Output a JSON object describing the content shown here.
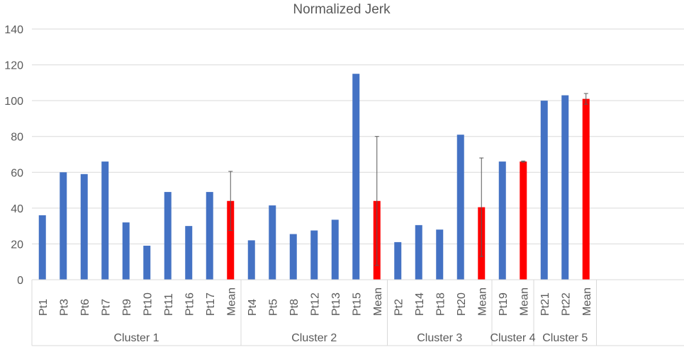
{
  "chart_data": {
    "type": "bar",
    "title": "Normalized Jerk",
    "xlabel": "",
    "ylabel": "",
    "ylim": [
      0,
      140
    ],
    "yticks": [
      0,
      20,
      40,
      60,
      80,
      100,
      120,
      140
    ],
    "grid": true,
    "legend": "none",
    "colors": {
      "patient": "#4472C4",
      "mean": "#FF0000",
      "error_bar": "#595959"
    },
    "groups": [
      {
        "name": "Cluster 1",
        "categories": [
          "Pt1",
          "Pt3",
          "Pt6",
          "Pt7",
          "Pt9",
          "Pt10",
          "Pt11",
          "Pt16",
          "Pt17",
          "Mean"
        ],
        "values": [
          36,
          60,
          59,
          66,
          32,
          19,
          49,
          30,
          49,
          44
        ],
        "mean_error": 16.5
      },
      {
        "name": "Cluster 2",
        "categories": [
          "Pt4",
          "Pt5",
          "Pt8",
          "Pt12",
          "Pt13",
          "Pt15",
          "Mean"
        ],
        "values": [
          22,
          41.5,
          25.5,
          27.5,
          33.5,
          115,
          44
        ],
        "mean_error": 36
      },
      {
        "name": "Cluster 3",
        "categories": [
          "Pt2",
          "Pt14",
          "Pt18",
          "Pt20",
          "Mean"
        ],
        "values": [
          21,
          30.5,
          28,
          81,
          40.5
        ],
        "mean_error": 27.5
      },
      {
        "name": "Cluster 4",
        "categories": [
          "Pt19",
          "Mean"
        ],
        "values": [
          66,
          66
        ],
        "mean_error": 0.3
      },
      {
        "name": "Cluster 5",
        "categories": [
          "Pt21",
          "Pt22",
          "Mean"
        ],
        "values": [
          100,
          103,
          101
        ],
        "mean_error": 3
      }
    ]
  }
}
